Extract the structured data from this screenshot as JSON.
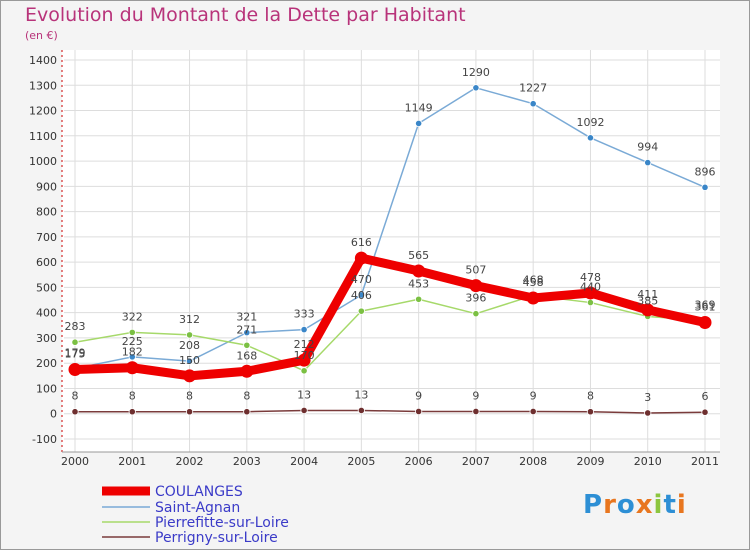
{
  "header": {
    "title": "Evolution du Montant de la Dette par Habitant",
    "subtitle": "(en €)"
  },
  "logo": {
    "text": "Proxiti",
    "letters": [
      "P",
      "r",
      "o",
      "x",
      "i",
      "t",
      "i"
    ],
    "colors": [
      "#2d8fd5",
      "#e8761f",
      "#2d8fd5",
      "#e8761f",
      "#8cc63f",
      "#2d8fd5",
      "#e8761f"
    ]
  },
  "chart_data": {
    "type": "line",
    "x": [
      "2000",
      "2001",
      "2002",
      "2003",
      "2004",
      "2005",
      "2006",
      "2007",
      "2008",
      "2009",
      "2010",
      "2011"
    ],
    "ylim": [
      -100,
      1400
    ],
    "yticks": [
      -100,
      0,
      100,
      200,
      300,
      400,
      500,
      600,
      700,
      800,
      900,
      1000,
      1100,
      1200,
      1300,
      1400
    ],
    "grid": true,
    "legend_position": "bottom-left",
    "series": [
      {
        "name": "COULANGES",
        "values": [
          175,
          182,
          150,
          168,
          212,
          616,
          565,
          507,
          458,
          478,
          411,
          361
        ],
        "color": "#ee0000",
        "marker_color": "#ee0000"
      },
      {
        "name": "Saint-Agnan",
        "values": [
          179,
          225,
          208,
          321,
          333,
          470,
          1149,
          1290,
          1227,
          1092,
          994,
          896
        ],
        "color": "#7aaad6",
        "marker_color": "#3a86c8"
      },
      {
        "name": "Pierrefitte-sur-Loire",
        "values": [
          283,
          322,
          312,
          271,
          170,
          406,
          453,
          396,
          468,
          440,
          385,
          369
        ],
        "color": "#a6d96a",
        "marker_color": "#7bc043"
      },
      {
        "name": "Perrigny-sur-Loire",
        "values": [
          8,
          8,
          8,
          8,
          13,
          13,
          9,
          9,
          9,
          8,
          3,
          6
        ],
        "color": "#7a3b3b",
        "marker_color": "#6e2f2f"
      }
    ]
  }
}
